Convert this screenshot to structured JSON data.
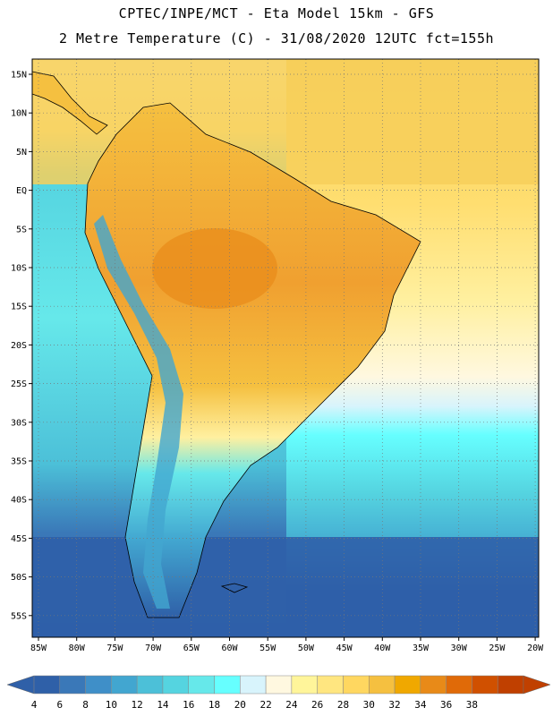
{
  "header": {
    "title_line1": "CPTEC/INPE/MCT -  Eta Model 15km - GFS",
    "title_line2": "2 Metre Temperature (C) - 31/08/2020 12UTC fct=155h"
  },
  "map": {
    "lat_labels": [
      "15N",
      "10N",
      "5N",
      "EQ",
      "5S",
      "10S",
      "15S",
      "20S",
      "25S",
      "30S",
      "35S",
      "40S",
      "45S",
      "50S",
      "55S"
    ],
    "lon_labels": [
      "85W",
      "80W",
      "75W",
      "70W",
      "65W",
      "60W",
      "55W",
      "50W",
      "45W",
      "40W",
      "35W",
      "30W",
      "25W",
      "20W"
    ],
    "grid": "dotted",
    "ocean_color_south": "#2f5fa8",
    "land_color_warm": "#f0a030"
  },
  "colorbar": {
    "levels": [
      "4",
      "6",
      "8",
      "10",
      "12",
      "14",
      "16",
      "18",
      "20",
      "22",
      "24",
      "26",
      "28",
      "30",
      "32",
      "34",
      "36",
      "38"
    ],
    "colors": [
      "#2f60a8",
      "#3a78b8",
      "#3f8fc8",
      "#42a6d0",
      "#4cc0d8",
      "#55d4e0",
      "#66e8ea",
      "#66ffff",
      "#d8f4fc",
      "#fff8e0",
      "#fff59a",
      "#ffe680",
      "#ffd760",
      "#f5c040",
      "#f0a800",
      "#e88a18",
      "#e06a08",
      "#d05000",
      "#c04000"
    ]
  }
}
